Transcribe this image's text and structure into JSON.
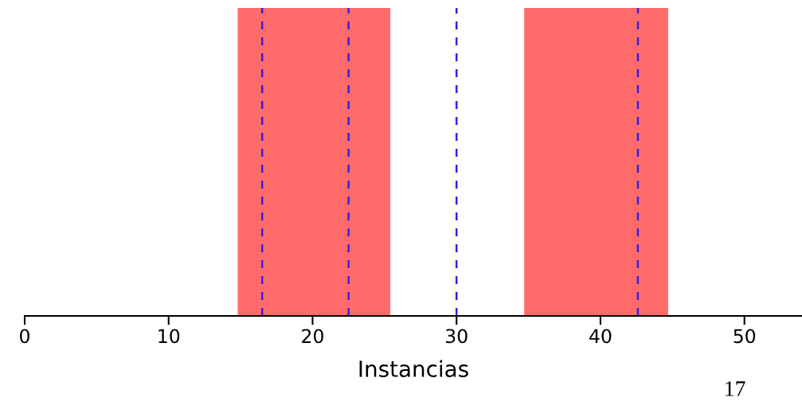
{
  "chart_data": {
    "type": "bar",
    "orientation": "horizontal",
    "categories": [
      null
    ],
    "xlabel": "Instancias",
    "xlim": [
      0,
      54
    ],
    "xticks": [
      0,
      10,
      20,
      30,
      40,
      50
    ],
    "series": [
      {
        "color": "#ff6b6b",
        "values": [
          10.6
        ],
        "base": [
          14.8
        ]
      },
      {
        "color": "#ff6b6b",
        "values": [
          10.0
        ],
        "base": [
          34.7
        ]
      }
    ],
    "ref_lines": [
      {
        "axis": "x",
        "value": 16.5,
        "color": "#3a1de0",
        "line_style": "dashed"
      },
      {
        "axis": "x",
        "value": 22.5,
        "color": "#3a1de0",
        "line_style": "dashed"
      },
      {
        "axis": "x",
        "value": 30,
        "color": "#3a1de0",
        "line_style": "dashed"
      },
      {
        "axis": "x",
        "value": 42.6,
        "color": "#3a1de0",
        "line_style": "dashed"
      }
    ],
    "annotations": [
      "17"
    ]
  }
}
